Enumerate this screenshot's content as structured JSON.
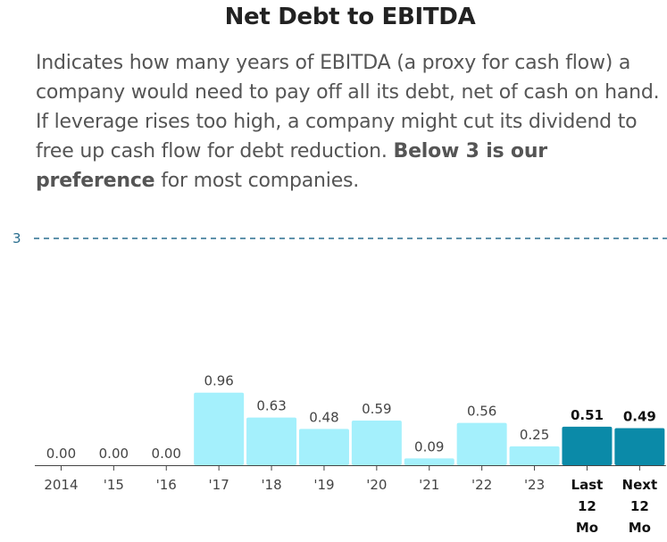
{
  "title": "Net Debt to EBITDA",
  "description": {
    "text_before": "Indicates how many years of EBITDA (a proxy for cash flow) a company would need to pay off all its debt, net of cash on hand. If leverage rises too high, a company might cut its dividend to free up cash flow for debt reduction.",
    "emphasis": "Below 3 is our preference",
    "text_after": "for most companies."
  },
  "colors": {
    "bar": "#a4f0fc",
    "bar_highlight": "#0b8aa8",
    "reference_line": "#2a6f8f",
    "axis": "#444444"
  },
  "chart_data": {
    "type": "bar",
    "title": "Net Debt to EBITDA",
    "xlabel": "",
    "ylabel": "",
    "ylim": [
      0,
      3
    ],
    "reference_line": {
      "value": 3,
      "label": "3",
      "style": "dashed"
    },
    "categories": [
      [
        "2014"
      ],
      [
        "'15"
      ],
      [
        "'16"
      ],
      [
        "'17"
      ],
      [
        "'18"
      ],
      [
        "'19"
      ],
      [
        "'20"
      ],
      [
        "'21"
      ],
      [
        "'22"
      ],
      [
        "'23"
      ],
      [
        "Last",
        "12",
        "Mo"
      ],
      [
        "Next",
        "12",
        "Mo"
      ]
    ],
    "values": [
      0.0,
      0.0,
      0.0,
      0.96,
      0.63,
      0.48,
      0.59,
      0.09,
      0.56,
      0.25,
      0.51,
      0.49
    ],
    "value_labels": [
      "0.00",
      "0.00",
      "0.00",
      "0.96",
      "0.63",
      "0.48",
      "0.59",
      "0.09",
      "0.56",
      "0.25",
      "0.51",
      "0.49"
    ],
    "highlighted": [
      false,
      false,
      false,
      false,
      false,
      false,
      false,
      false,
      false,
      false,
      true,
      true
    ]
  }
}
